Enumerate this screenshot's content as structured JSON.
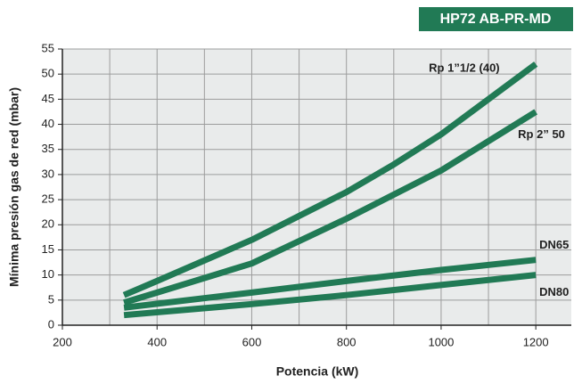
{
  "chart_data": {
    "type": "line",
    "title": "HP72 AB-PR-MD",
    "x_label": "Potencia (kW)",
    "y_label": "Mínima presión gas de red (mbar)",
    "xlim": [
      200,
      1275
    ],
    "ylim": [
      0,
      55
    ],
    "xticks": [
      200,
      400,
      600,
      800,
      1000,
      1200
    ],
    "x_minor_grid": [
      300,
      500,
      700,
      900,
      1100
    ],
    "yticks": [
      0,
      5,
      10,
      15,
      20,
      25,
      30,
      35,
      40,
      45,
      50,
      55
    ],
    "grid": true,
    "series": [
      {
        "name": "Rp 1”1/2 (40)",
        "color": "#217a55",
        "x": [
          330,
          400,
          600,
          800,
          900,
          1000,
          1200
        ],
        "values": [
          6,
          8.8,
          17,
          26.5,
          32,
          38,
          52
        ]
      },
      {
        "name": "Rp 2” 50",
        "color": "#217a55",
        "x": [
          330,
          400,
          600,
          800,
          1000,
          1200
        ],
        "values": [
          4.5,
          6.5,
          12.3,
          21.2,
          30.8,
          42.5
        ]
      },
      {
        "name": "DN65",
        "color": "#217a55",
        "x": [
          330,
          600,
          800,
          1000,
          1200
        ],
        "values": [
          3.5,
          6.5,
          8.8,
          11,
          13
        ]
      },
      {
        "name": "DN80",
        "color": "#217a55",
        "x": [
          330,
          600,
          800,
          1000,
          1200
        ],
        "values": [
          2,
          4.2,
          6,
          8,
          10
        ]
      }
    ]
  }
}
